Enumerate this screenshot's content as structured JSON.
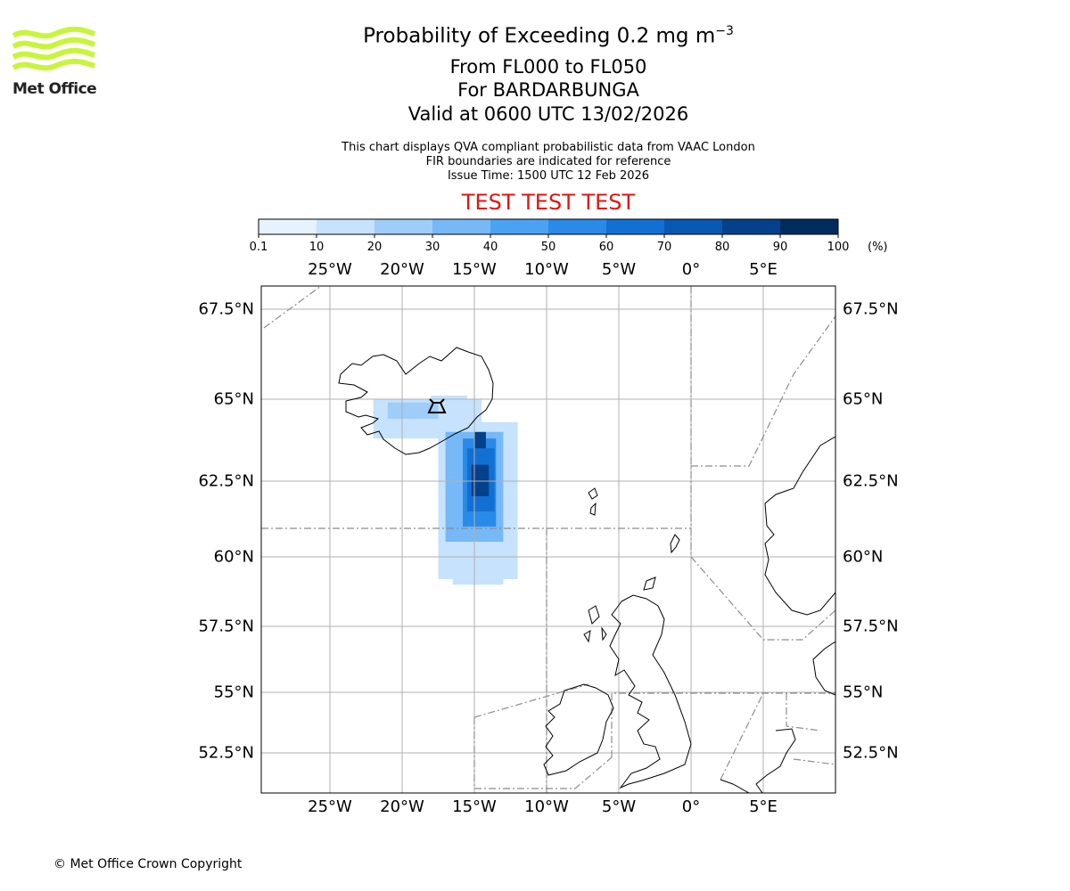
{
  "brand": {
    "logo_text": "Met Office",
    "logo_color": "#c8f53c"
  },
  "header": {
    "title_prefix": "Probability of Exceeding 0.2 mg m",
    "title_exponent": "−3",
    "flight_levels": "From FL000 to FL050",
    "volcano": "For BARDARBUNGA",
    "valid_time": "Valid at 0600 UTC 13/02/2026"
  },
  "notes": {
    "line1": "This chart displays QVA compliant probabilistic data from VAAC London",
    "line2": "FIR boundaries are indicated for reference",
    "issue_time": "Issue Time: 1500 UTC 12 Feb 2026"
  },
  "test_banner": {
    "text": "TEST TEST TEST",
    "color": "#e2140e"
  },
  "colorbar": {
    "ticks": [
      "0.1",
      "10",
      "20",
      "30",
      "40",
      "50",
      "60",
      "70",
      "80",
      "90",
      "100"
    ],
    "unit": "(%)",
    "colors": [
      "#e6f2fe",
      "#c6e2fc",
      "#9fcdf9",
      "#77b8f6",
      "#4ca2f2",
      "#2a8ae8",
      "#1270d2",
      "#0958b2",
      "#04418a",
      "#022b5e"
    ]
  },
  "map": {
    "lon_labels": [
      "25°W",
      "20°W",
      "15°W",
      "10°W",
      "5°W",
      "0°",
      "5°E"
    ],
    "lat_labels": [
      "67.5°N",
      "65°N",
      "62.5°N",
      "60°N",
      "57.5°N",
      "55°N",
      "52.5°N"
    ],
    "volcano_icon": "volcano-icon"
  },
  "chart_data": {
    "type": "heatmap",
    "title": "Probability of Exceeding 0.2 mg m−3",
    "variable": "probability (%)",
    "colorbar_levels": [
      0.1,
      10,
      20,
      30,
      40,
      50,
      60,
      70,
      80,
      90,
      100
    ],
    "lon_range": [
      -29.7,
      9.8
    ],
    "lat_range": [
      51.0,
      68.3
    ],
    "source_volcano": {
      "name": "BARDARBUNGA",
      "lon": -17.5,
      "lat": 64.6
    },
    "plume_regions": [
      {
        "lon": [
          -22.0,
          -14.5
        ],
        "lat": [
          63.8,
          65.0
        ],
        "level": 1
      },
      {
        "lon": [
          -17.5,
          -12.0
        ],
        "lat": [
          59.2,
          64.3
        ],
        "level": 1
      },
      {
        "lon": [
          -16.5,
          -13.0
        ],
        "lat": [
          59.0,
          60.2
        ],
        "level": 1
      },
      {
        "lon": [
          -18.0,
          -15.5
        ],
        "lat": [
          64.5,
          65.1
        ],
        "level": 1
      },
      {
        "lon": [
          -21.0,
          -17.5
        ],
        "lat": [
          64.4,
          64.9
        ],
        "level": 2
      },
      {
        "lon": [
          -17.0,
          -13.0
        ],
        "lat": [
          60.5,
          64.0
        ],
        "level": 3
      },
      {
        "lon": [
          -15.8,
          -13.5
        ],
        "lat": [
          61.0,
          63.8
        ],
        "level": 5
      },
      {
        "lon": [
          -15.5,
          -13.6
        ],
        "lat": [
          61.5,
          63.5
        ],
        "level": 6
      },
      {
        "lon": [
          -15.2,
          -14.0
        ],
        "lat": [
          62.0,
          63.0
        ],
        "level": 8
      },
      {
        "lon": [
          -15.0,
          -14.2
        ],
        "lat": [
          63.5,
          64.0
        ],
        "level": 8
      }
    ]
  },
  "footer": {
    "copyright": "© Met Office Crown Copyright"
  }
}
